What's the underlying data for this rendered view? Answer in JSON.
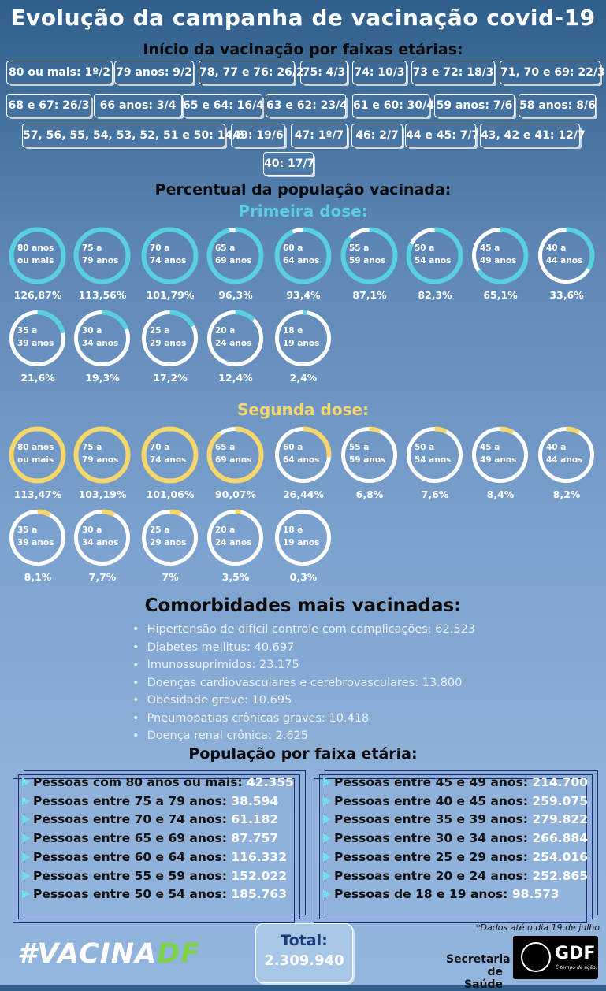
{
  "title": "Evolução da campanha de vacinação covid-19",
  "schedule_title": "Início da vacinação por faixas etárias:",
  "schedule": [
    "80 ou mais: 1º/2",
    "79 anos: 9/2",
    "78, 77 e 76: 26/2",
    "75: 4/3",
    "74: 10/3",
    "73 e 72: 18/3",
    "71, 70 e 69: 22/3",
    "68 e 67: 26/3",
    "66 anos: 3/4",
    "65 e 64: 16/4",
    "63 e 62: 23/4",
    "61 e 60: 30/4",
    "59 anos: 7/6",
    "58 anos: 8/6",
    "57, 56, 55, 54, 53, 52, 51 e 50: 14/6",
    "49: 19/6",
    "47: 1º/7",
    "46: 2/7",
    "44 e 45: 7/7",
    "43, 42 e 41: 12/7",
    "40: 17/7"
  ],
  "percent_title": "Percentual da população vacinada:",
  "first_dose_title": "Primeira dose:",
  "second_dose_title": "Segunda dose:",
  "colors": {
    "first": "#5ad0df",
    "second": "#f5d76b",
    "ring_bg": "#ffffff"
  },
  "first_dose": [
    {
      "l1": "80 anos",
      "l2": "ou mais",
      "value": "126,87%",
      "pct": 126.87
    },
    {
      "l1": "75 a",
      "l2": "79 anos",
      "value": "113,56%",
      "pct": 113.56
    },
    {
      "l1": "70 a",
      "l2": "74 anos",
      "value": "101,79%",
      "pct": 101.79
    },
    {
      "l1": "65 a",
      "l2": "69 anos",
      "value": "96,3%",
      "pct": 96.3
    },
    {
      "l1": "60 a",
      "l2": "64 anos",
      "value": "93,4%",
      "pct": 93.4
    },
    {
      "l1": "55 a",
      "l2": "59 anos",
      "value": "87,1%",
      "pct": 87.1
    },
    {
      "l1": "50 a",
      "l2": "54 anos",
      "value": "82,3%",
      "pct": 82.3
    },
    {
      "l1": "45 a",
      "l2": "49 anos",
      "value": "65,1%",
      "pct": 65.1
    },
    {
      "l1": "40 a",
      "l2": "44 anos",
      "value": "33,6%",
      "pct": 33.6
    },
    {
      "l1": "35 a",
      "l2": "39 anos",
      "value": "21,6%",
      "pct": 21.6
    },
    {
      "l1": "30 a",
      "l2": "34 anos",
      "value": "19,3%",
      "pct": 19.3
    },
    {
      "l1": "25 a",
      "l2": "29 anos",
      "value": "17,2%",
      "pct": 17.2
    },
    {
      "l1": "20 a",
      "l2": "24 anos",
      "value": "12,4%",
      "pct": 12.4
    },
    {
      "l1": "18 e",
      "l2": "19 anos",
      "value": "2,4%",
      "pct": 2.4
    }
  ],
  "second_dose": [
    {
      "l1": "80 anos",
      "l2": "ou mais",
      "value": "113,47%",
      "pct": 113.47
    },
    {
      "l1": "75 a",
      "l2": "79 anos",
      "value": "103,19%",
      "pct": 103.19
    },
    {
      "l1": "70 a",
      "l2": "74 anos",
      "value": "101,06%",
      "pct": 101.06
    },
    {
      "l1": "65 a",
      "l2": "69 anos",
      "value": "90,07%",
      "pct": 90.07
    },
    {
      "l1": "60 a",
      "l2": "64 anos",
      "value": "26,44%",
      "pct": 26.44
    },
    {
      "l1": "55 a",
      "l2": "59 anos",
      "value": "6,8%",
      "pct": 6.8
    },
    {
      "l1": "50 a",
      "l2": "54 anos",
      "value": "7,6%",
      "pct": 7.6
    },
    {
      "l1": "45 a",
      "l2": "49 anos",
      "value": "8,4%",
      "pct": 8.4
    },
    {
      "l1": "40 a",
      "l2": "44 anos",
      "value": "8,2%",
      "pct": 8.2
    },
    {
      "l1": "35 a",
      "l2": "39 anos",
      "value": "8,1%",
      "pct": 8.1
    },
    {
      "l1": "30 a",
      "l2": "34 anos",
      "value": "7,7%",
      "pct": 7.7
    },
    {
      "l1": "25 a",
      "l2": "29 anos",
      "value": "7%",
      "pct": 7
    },
    {
      "l1": "20 a",
      "l2": "24 anos",
      "value": "3,5%",
      "pct": 3.5
    },
    {
      "l1": "18 e",
      "l2": "19 anos",
      "value": "0,3%",
      "pct": 0.3
    }
  ],
  "comorb_title": "Comorbidades mais vacinadas:",
  "comorbidities": [
    "Hipertensão de difícil controle com complicações: 62.523",
    "Diabetes mellitus: 40.697",
    "Imunossuprimidos: 23.175",
    "Doenças cardiovasculares e cerebrovasculares: 13.800",
    "Obesidade grave: 10.695",
    "Pneumopatias crônicas graves: 10.418",
    "Doença renal crônica: 2.625"
  ],
  "population_title": "População por faixa etária:",
  "population_left": [
    {
      "label": "Pessoas com 80 anos ou mais: ",
      "num": "42.355"
    },
    {
      "label": "Pessoas entre 75 a 79 anos: ",
      "num": "38.594"
    },
    {
      "label": "Pessoas entre 70 e 74 anos: ",
      "num": "61.182"
    },
    {
      "label": "Pessoas entre 65 e 69 anos: ",
      "num": "87.757"
    },
    {
      "label": "Pessoas entre 60 e 64 anos: ",
      "num": "116.332"
    },
    {
      "label": "Pessoas entre 55 e 59 anos: ",
      "num": "152.022"
    },
    {
      "label": "Pessoas entre 50 e 54 anos: ",
      "num": "185.763"
    }
  ],
  "population_right": [
    {
      "label": "Pessoas entre 45 e 49 anos: ",
      "num": "214.700"
    },
    {
      "label": "Pessoas entre 40 e 45 anos: ",
      "num": "259.075"
    },
    {
      "label": "Pessoas entre 35 e 39 anos: ",
      "num": "279.822"
    },
    {
      "label": "Pessoas entre 30 e 34 anos: ",
      "num": "266.884"
    },
    {
      "label": "Pessoas entre 25 e 29 anos: ",
      "num": "254.016"
    },
    {
      "label": "Pessoas entre 20 e 24 anos: ",
      "num": "252.865"
    },
    {
      "label": "Pessoas de 18 e 19 anos: ",
      "num": "98.573"
    }
  ],
  "footnote": "*Dados até o dia 19 de julho",
  "hashtag_white": "#VACINA",
  "hashtag_green": "DF",
  "total_label": "Total:",
  "total_value": "2.309.940",
  "secretaria_l1": "Secretaria",
  "secretaria_l2": "de Saúde",
  "gdf_logo": "GDF",
  "gdf_slogan": "É tempo de ação."
}
